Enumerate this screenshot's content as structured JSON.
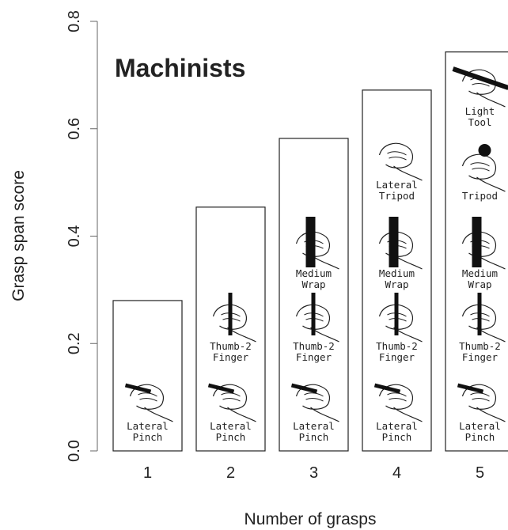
{
  "chart_data": {
    "type": "bar",
    "annotation": "Machinists",
    "x_label": "Number of grasps",
    "y_label": "Grasp span score",
    "categories": [
      "1",
      "2",
      "3",
      "4",
      "5"
    ],
    "values": [
      0.28,
      0.454,
      0.582,
      0.672,
      0.743
    ],
    "color": "#ffffff",
    "ylim": [
      0,
      0.8
    ],
    "yticks": [
      {
        "value": 0,
        "label": "0.0"
      },
      0.2,
      0.4,
      0.6,
      0.8
    ],
    "grasp_labels": [
      [
        [
          "Lateral",
          "Pinch"
        ]
      ],
      [
        [
          "Lateral",
          "Pinch"
        ],
        [
          "Thumb-2",
          "Finger"
        ]
      ],
      [
        [
          "Lateral",
          "Pinch"
        ],
        [
          "Thumb-2",
          "Finger"
        ],
        [
          "Medium",
          "Wrap"
        ]
      ],
      [
        [
          "Lateral",
          "Pinch"
        ],
        [
          "Thumb-2",
          "Finger"
        ],
        [
          "Medium",
          "Wrap"
        ],
        [
          "Lateral",
          "Tripod"
        ]
      ],
      [
        [
          "Lateral",
          "Pinch"
        ],
        [
          "Thumb-2",
          "Finger"
        ],
        [
          "Medium",
          "Wrap"
        ],
        [
          "Tripod"
        ],
        [
          "Light",
          "Tool"
        ]
      ]
    ]
  }
}
